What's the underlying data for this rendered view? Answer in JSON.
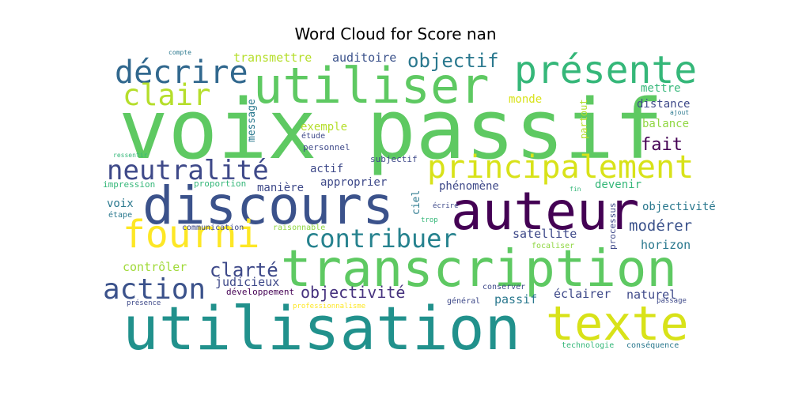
{
  "chart_data": {
    "type": "wordcloud",
    "title": "Word Cloud for Score nan",
    "colormap": "viridis",
    "background": "#ffffff",
    "words": [
      {
        "text": "voix passif",
        "weight": 1.0,
        "color": "#5ec962"
      },
      {
        "text": "utilisation",
        "weight": 0.86,
        "color": "#21918c"
      },
      {
        "text": "discours",
        "weight": 0.78,
        "color": "#3b528b"
      },
      {
        "text": "auteur",
        "weight": 0.78,
        "color": "#440154"
      },
      {
        "text": "transcription",
        "weight": 0.76,
        "color": "#5ec962"
      },
      {
        "text": "utiliser",
        "weight": 0.72,
        "color": "#5ec962"
      },
      {
        "text": "texte",
        "weight": 0.68,
        "color": "#d8e219"
      },
      {
        "text": "présente",
        "weight": 0.55,
        "color": "#35b779"
      },
      {
        "text": "fourni",
        "weight": 0.54,
        "color": "#fde725"
      },
      {
        "text": "décrire",
        "weight": 0.45,
        "color": "#31688e"
      },
      {
        "text": "principalement",
        "weight": 0.45,
        "color": "#d8e219"
      },
      {
        "text": "clair",
        "weight": 0.4,
        "color": "#b5de2b"
      },
      {
        "text": "neutralité",
        "weight": 0.4,
        "color": "#3e4989"
      },
      {
        "text": "action",
        "weight": 0.4,
        "color": "#3b528b"
      },
      {
        "text": "contribuer",
        "weight": 0.4,
        "color": "#26828e"
      },
      {
        "text": "objectif",
        "weight": 0.26,
        "color": "#2a788e"
      },
      {
        "text": "clarté",
        "weight": 0.26,
        "color": "#3e4989"
      },
      {
        "text": "fait",
        "weight": 0.24,
        "color": "#440154"
      },
      {
        "text": "objectivité",
        "weight": 0.22,
        "color": "#46327e"
      },
      {
        "text": "modérer",
        "weight": 0.2,
        "color": "#3b528b"
      },
      {
        "text": "transmettre",
        "weight": 0.15,
        "color": "#b5de2b"
      },
      {
        "text": "auditoire",
        "weight": 0.15,
        "color": "#3b528b"
      },
      {
        "text": "exemple",
        "weight": 0.15,
        "color": "#b5de2b"
      },
      {
        "text": "actif",
        "weight": 0.15,
        "color": "#3e4989"
      },
      {
        "text": "approprier",
        "weight": 0.15,
        "color": "#3e4989"
      },
      {
        "text": "phénomène",
        "weight": 0.14,
        "color": "#3e4989"
      },
      {
        "text": "satellite",
        "weight": 0.15,
        "color": "#3e4989"
      },
      {
        "text": "horizon",
        "weight": 0.15,
        "color": "#2a788e"
      },
      {
        "text": "contrôler",
        "weight": 0.15,
        "color": "#a0da39"
      },
      {
        "text": "judicieux",
        "weight": 0.15,
        "color": "#3e4989"
      },
      {
        "text": "naturel",
        "weight": 0.15,
        "color": "#3e4989"
      },
      {
        "text": "éclairer",
        "weight": 0.15,
        "color": "#3e4989"
      },
      {
        "text": "passif",
        "weight": 0.15,
        "color": "#2a788e"
      },
      {
        "text": "mettre",
        "weight": 0.14,
        "color": "#35b779"
      },
      {
        "text": "distance",
        "weight": 0.14,
        "color": "#3e4989"
      },
      {
        "text": "balance",
        "weight": 0.14,
        "color": "#90d743"
      },
      {
        "text": "monde",
        "weight": 0.14,
        "color": "#d8e219"
      },
      {
        "text": "manière",
        "weight": 0.14,
        "color": "#3e4989"
      },
      {
        "text": "voix",
        "weight": 0.14,
        "color": "#2a788e"
      },
      {
        "text": "devenir",
        "weight": 0.14,
        "color": "#35b779"
      },
      {
        "text": "objectivité",
        "weight": 0.14,
        "color": "#2a788e"
      },
      {
        "text": "message",
        "weight": 0.13,
        "color": "#2a788e"
      },
      {
        "text": "partout",
        "weight": 0.12,
        "color": "#b5de2b"
      },
      {
        "text": "ciel",
        "weight": 0.12,
        "color": "#2a788e"
      },
      {
        "text": "processus",
        "weight": 0.1,
        "color": "#3e4989"
      },
      {
        "text": "personnel",
        "weight": 0.1,
        "color": "#3e4989"
      },
      {
        "text": "subjectif",
        "weight": 0.1,
        "color": "#3e4989"
      },
      {
        "text": "étude",
        "weight": 0.09,
        "color": "#3e4989"
      },
      {
        "text": "impression",
        "weight": 0.1,
        "color": "#35b779"
      },
      {
        "text": "proportion",
        "weight": 0.1,
        "color": "#35b779"
      },
      {
        "text": "étape",
        "weight": 0.09,
        "color": "#2a788e"
      },
      {
        "text": "communication",
        "weight": 0.09,
        "color": "#3e4989"
      },
      {
        "text": "raisonnable",
        "weight": 0.09,
        "color": "#90d743"
      },
      {
        "text": "développement",
        "weight": 0.1,
        "color": "#440154"
      },
      {
        "text": "conserver",
        "weight": 0.09,
        "color": "#3e4989"
      },
      {
        "text": "général",
        "weight": 0.09,
        "color": "#3e4989"
      },
      {
        "text": "focaliser",
        "weight": 0.09,
        "color": "#90d743"
      },
      {
        "text": "technologie",
        "weight": 0.09,
        "color": "#35b779"
      },
      {
        "text": "conséquence",
        "weight": 0.09,
        "color": "#2a788e"
      },
      {
        "text": "présence",
        "weight": 0.07,
        "color": "#3e4989"
      },
      {
        "text": "professionnalisme",
        "weight": 0.07,
        "color": "#fde725"
      },
      {
        "text": "passage",
        "weight": 0.07,
        "color": "#3e4989"
      },
      {
        "text": "écrire",
        "weight": 0.07,
        "color": "#3e4989"
      },
      {
        "text": "trop",
        "weight": 0.06,
        "color": "#35b779"
      },
      {
        "text": "fin",
        "weight": 0.06,
        "color": "#35b779"
      },
      {
        "text": "ajout",
        "weight": 0.06,
        "color": "#2a788e"
      },
      {
        "text": "compte",
        "weight": 0.06,
        "color": "#2a788e"
      },
      {
        "text": "ressentir",
        "weight": 0.06,
        "color": "#35b779"
      }
    ]
  }
}
